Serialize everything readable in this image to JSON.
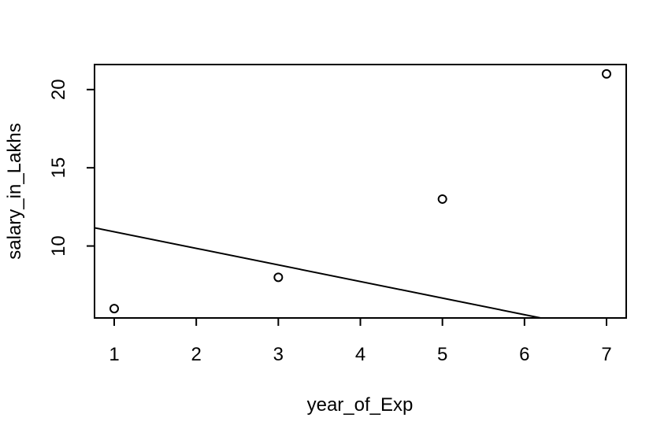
{
  "chart_data": {
    "type": "scatter",
    "title": "",
    "xlabel": "year_of_Exp",
    "ylabel": "salary_in_Lakhs",
    "xlim": [
      0.76,
      7.24
    ],
    "ylim": [
      5.4,
      21.6
    ],
    "x_ticks": [
      1,
      2,
      3,
      4,
      5,
      6,
      7
    ],
    "y_ticks": [
      10,
      15,
      20
    ],
    "points": [
      {
        "x": 1,
        "y": 6
      },
      {
        "x": 3,
        "y": 8
      },
      {
        "x": 5,
        "y": 13
      },
      {
        "x": 7,
        "y": 21
      }
    ],
    "fitted_line": {
      "intercept": 11.97,
      "slope": -1.06
    },
    "grid": false,
    "legend": "none",
    "colors": {
      "line": "#000000",
      "points": "#000000",
      "background": "#ffffff"
    }
  }
}
